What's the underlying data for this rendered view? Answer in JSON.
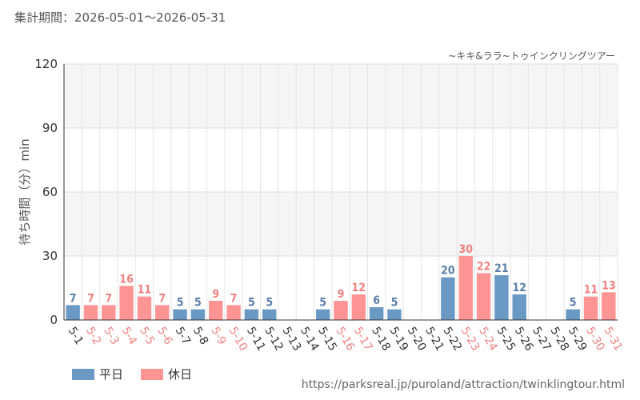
{
  "header": {
    "period_label": "集計期間：2026-05-01～2026-05-31",
    "attraction": "~キキ&ララ~トゥインクリングツアー"
  },
  "footer": {
    "source_url": "https://parksreal.jp/puroland/attraction/twinklingtour.html"
  },
  "legend": [
    {
      "label": "平日",
      "color": "#6a9ac4"
    },
    {
      "label": "休日",
      "color": "#ff9494"
    }
  ],
  "chart_data": {
    "type": "bar",
    "ylabel": "待ち時間（分）min",
    "ylim": [
      0,
      120
    ],
    "yticks": [
      0,
      30,
      60,
      90,
      120
    ],
    "grid": true,
    "legend_position": "bottom-left",
    "categories": [
      "5-1",
      "5-2",
      "5-3",
      "5-4",
      "5-5",
      "5-6",
      "5-7",
      "5-8",
      "5-9",
      "5-10",
      "5-11",
      "5-12",
      "5-13",
      "5-14",
      "5-15",
      "5-16",
      "5-17",
      "5-18",
      "5-19",
      "5-20",
      "5-21",
      "5-22",
      "5-23",
      "5-24",
      "5-25",
      "5-26",
      "5-27",
      "5-28",
      "5-29",
      "5-30",
      "5-31"
    ],
    "values": [
      7,
      7,
      7,
      16,
      11,
      7,
      5,
      5,
      9,
      7,
      5,
      5,
      null,
      null,
      5,
      9,
      12,
      6,
      5,
      null,
      null,
      20,
      30,
      22,
      21,
      12,
      null,
      null,
      5,
      11,
      13
    ],
    "day_type": [
      "weekday",
      "holiday",
      "holiday",
      "holiday",
      "holiday",
      "holiday",
      "weekday",
      "weekday",
      "holiday",
      "holiday",
      "weekday",
      "weekday",
      "weekday",
      "weekday",
      "weekday",
      "holiday",
      "holiday",
      "weekday",
      "weekday",
      "weekday",
      "weekday",
      "weekday",
      "holiday",
      "holiday",
      "weekday",
      "weekday",
      "weekday",
      "weekday",
      "weekday",
      "holiday",
      "holiday"
    ],
    "colors": {
      "weekday": "#6a9ac4",
      "holiday": "#ff9494",
      "weekday_text": "#5a7fa8",
      "holiday_text": "#f08080"
    }
  }
}
